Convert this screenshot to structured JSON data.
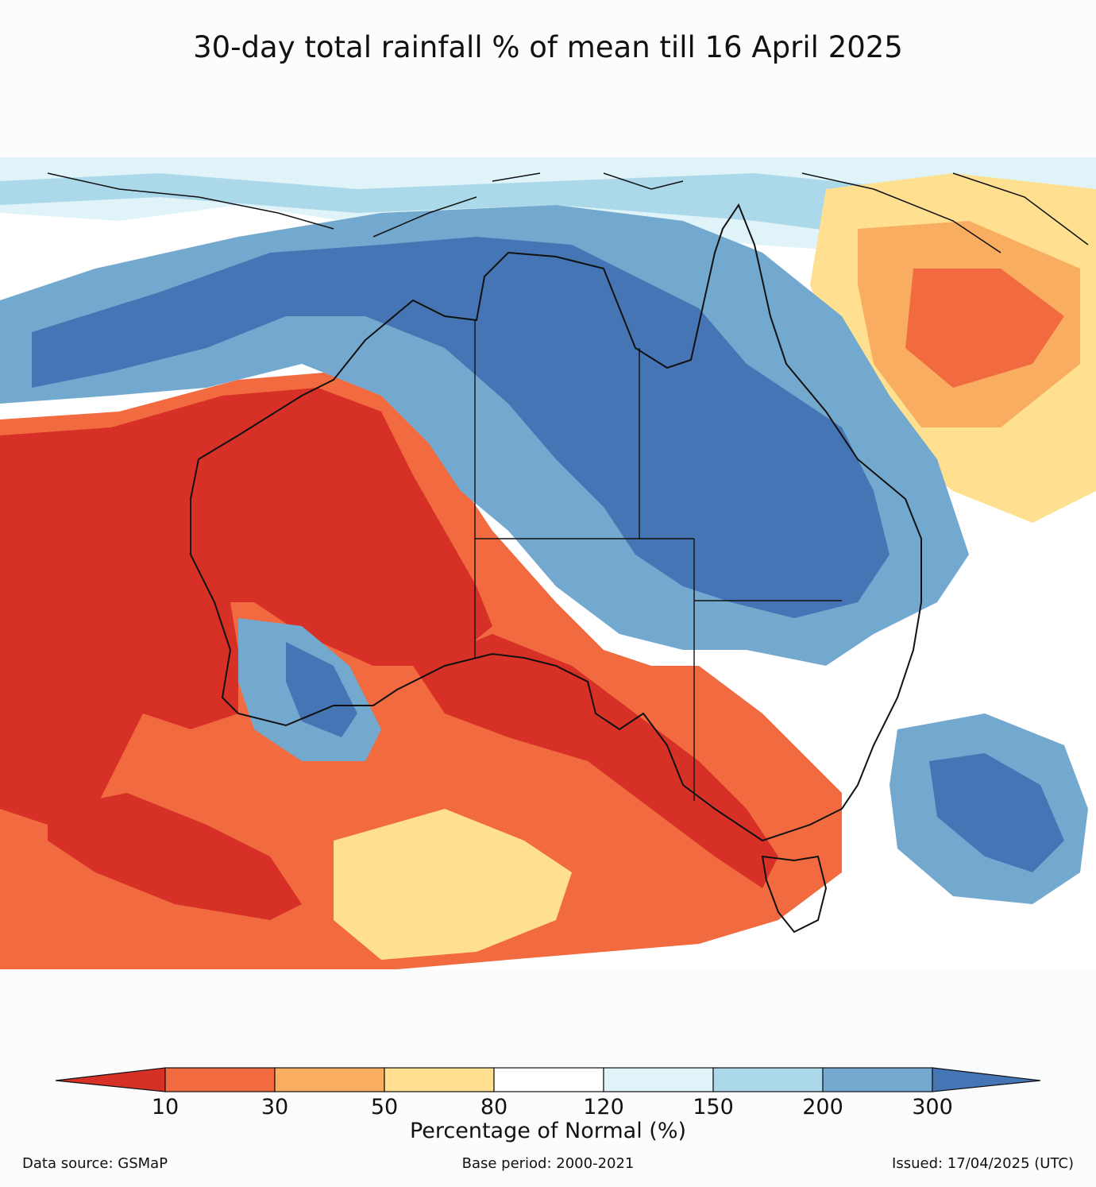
{
  "title": "30-day total rainfall % of mean till 16 April 2025",
  "colors": {
    "lt10": "#d73027",
    "c10_30": "#f26a3f",
    "c30_50": "#f9ad60",
    "c50_80": "#fee090",
    "c80_120": "#ffffff",
    "c120_150": "#e0f3f8",
    "c150_200": "#abd9e9",
    "c200_300": "#74a9cf",
    "gt300": "#4575b4"
  },
  "colorbar": {
    "ticks": [
      "10",
      "30",
      "50",
      "80",
      "120",
      "150",
      "200",
      "300"
    ],
    "label": "Percentage of Normal (%)"
  },
  "footer": {
    "left": "Data source: GSMaP",
    "center": "Base period: 2000-2021",
    "right": "Issued: 17/04/2025 (UTC)"
  }
}
